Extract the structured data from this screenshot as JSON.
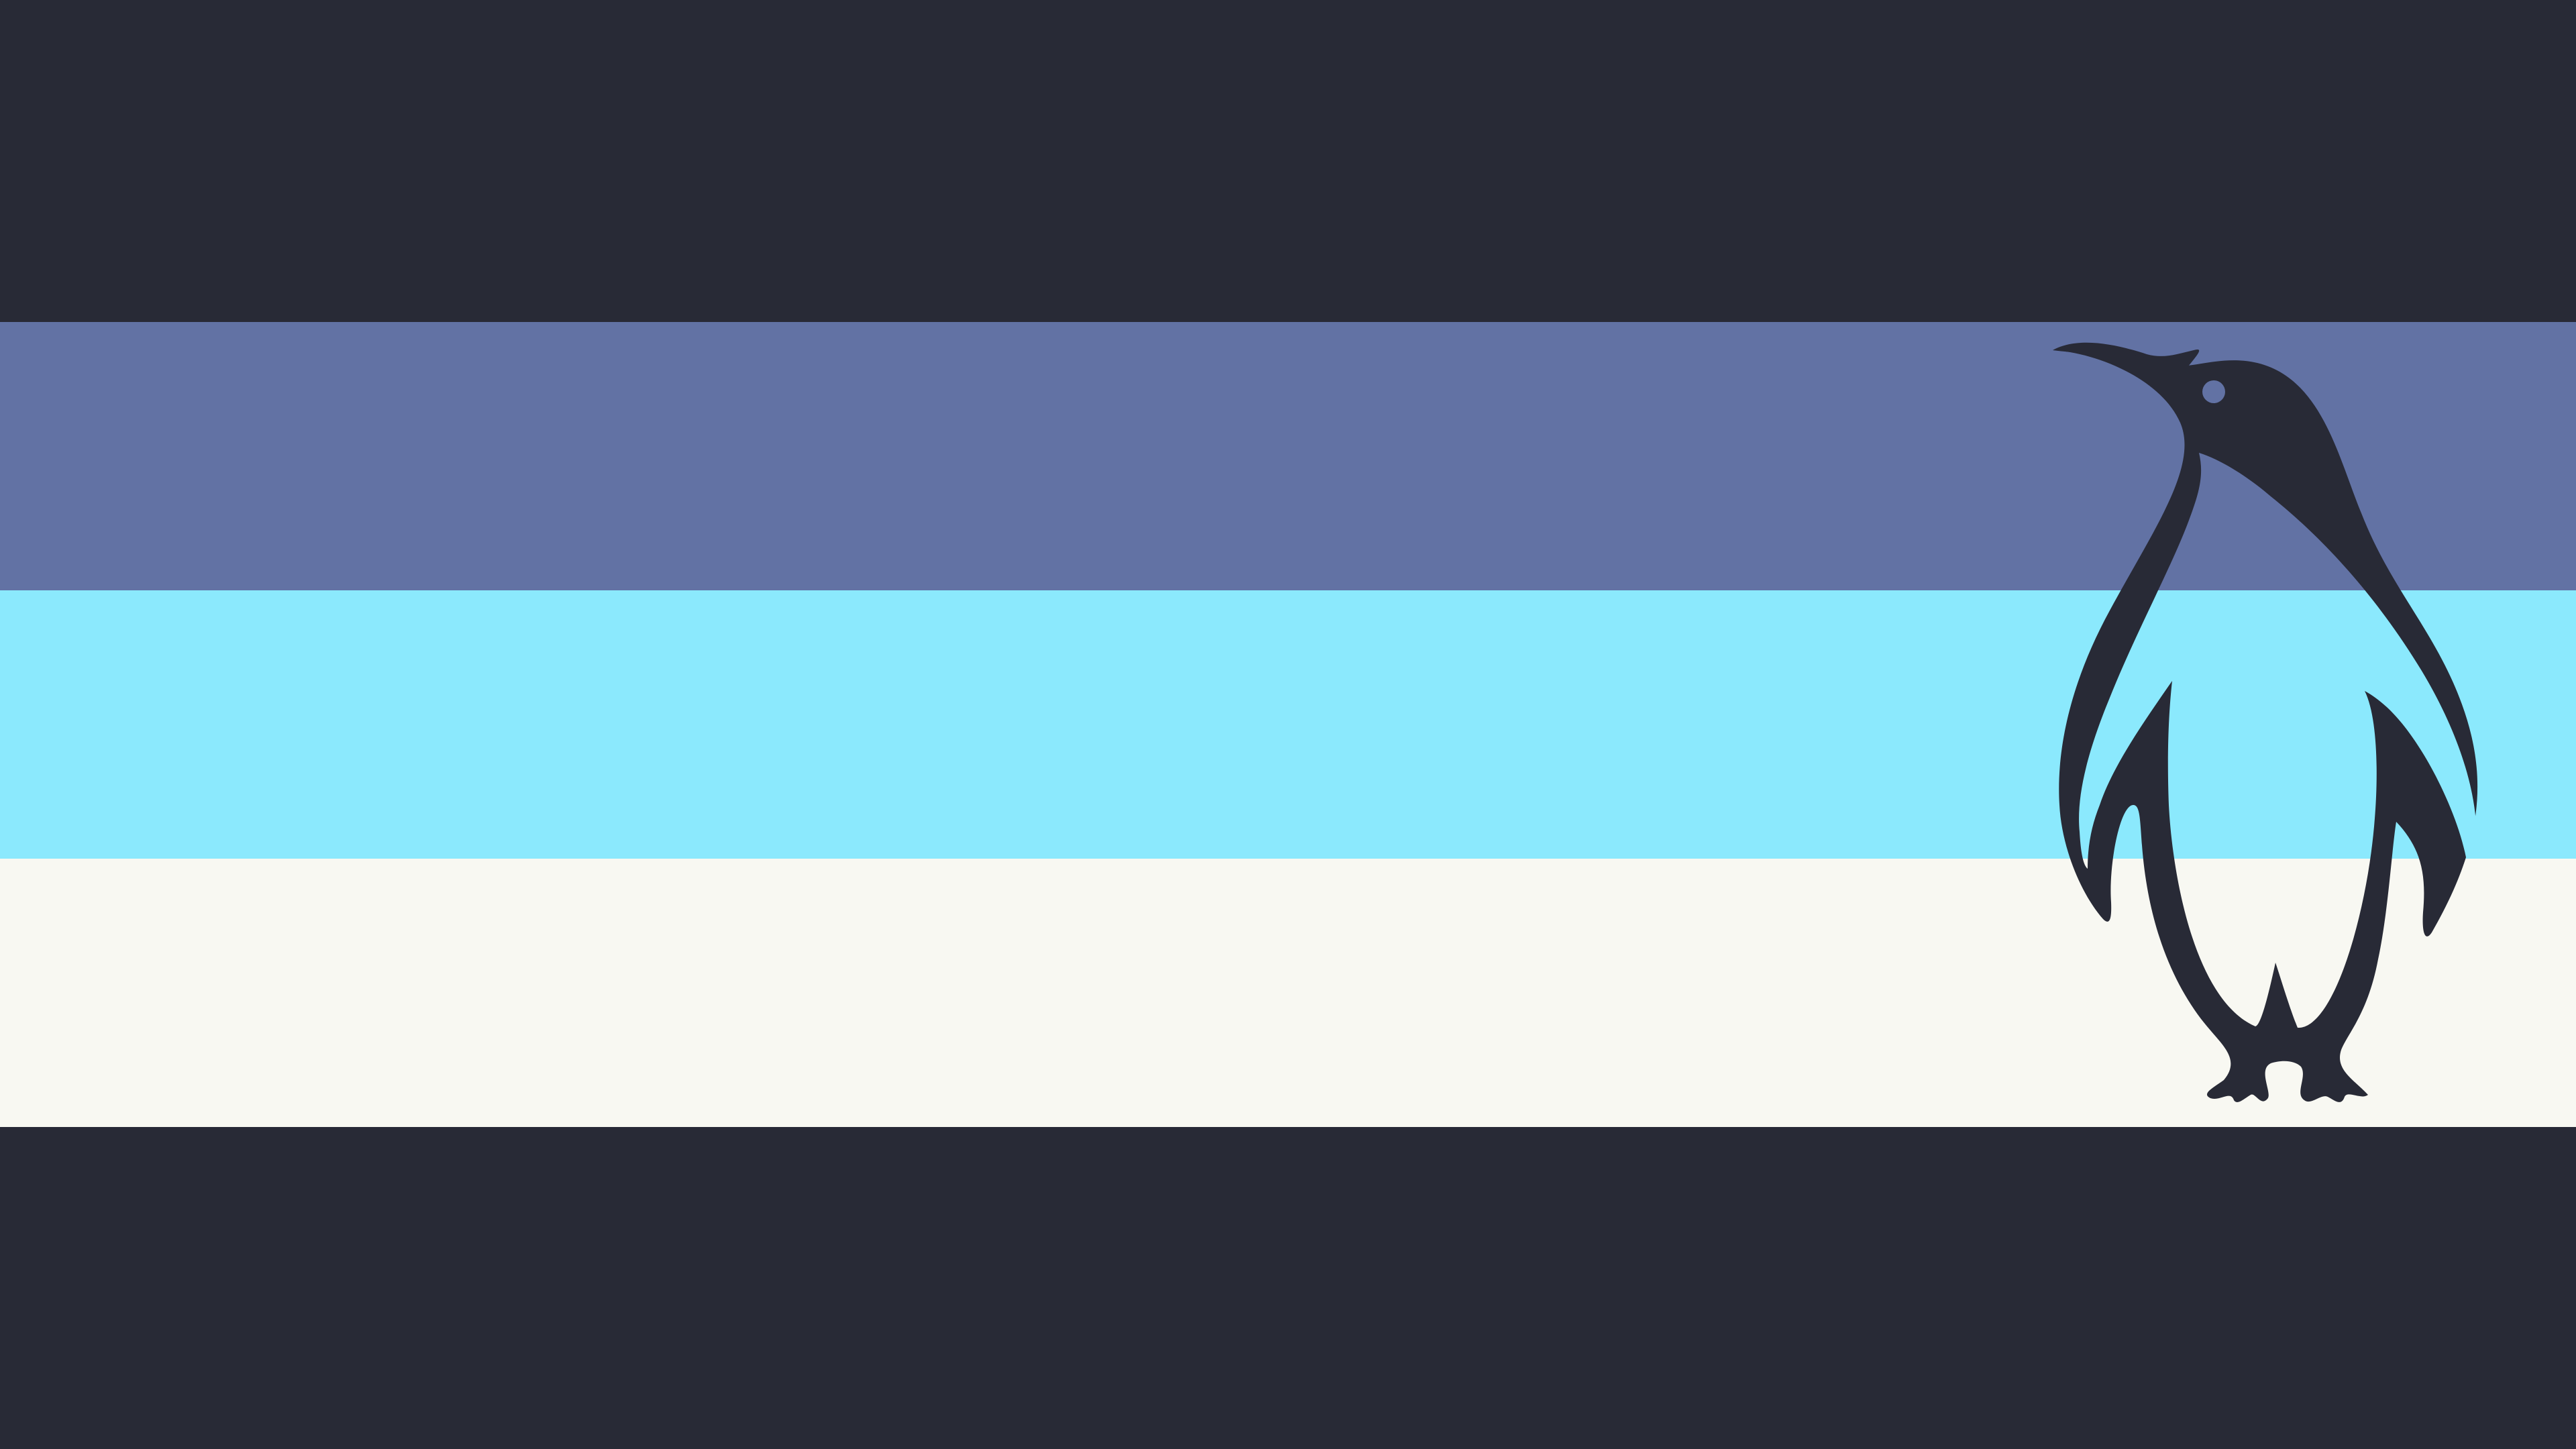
{
  "wallpaper": {
    "stripes": [
      {
        "name": "top-dark",
        "color": "#282a36"
      },
      {
        "name": "periwinkle",
        "color": "#6272a4"
      },
      {
        "name": "light-cyan",
        "color": "#8be9fd"
      },
      {
        "name": "off-white",
        "color": "#f8f8f2"
      },
      {
        "name": "bottom-dark",
        "color": "#282a36"
      }
    ],
    "logo": {
      "icon": "penguin-icon",
      "fill": "#282a36",
      "eye": "#6272a4"
    }
  }
}
